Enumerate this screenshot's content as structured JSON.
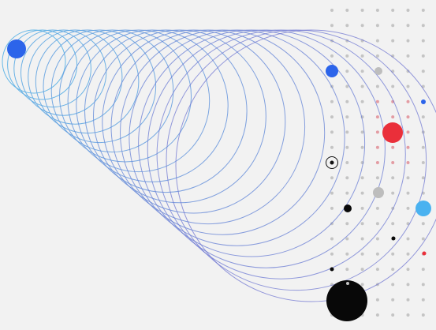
{
  "colors": {
    "background": "#f2f2f2",
    "ring_start": "#5fb4e6",
    "ring_end": "#6a6fd0",
    "dot_grid": "#c4c4c4",
    "dot_grid_red": "#e39ca3",
    "accent_blue": "#2c64ea",
    "accent_red": "#ea2f3a",
    "accent_light_blue": "#4ab2f0",
    "gray": "#bdbdbd",
    "black": "#080808"
  }
}
